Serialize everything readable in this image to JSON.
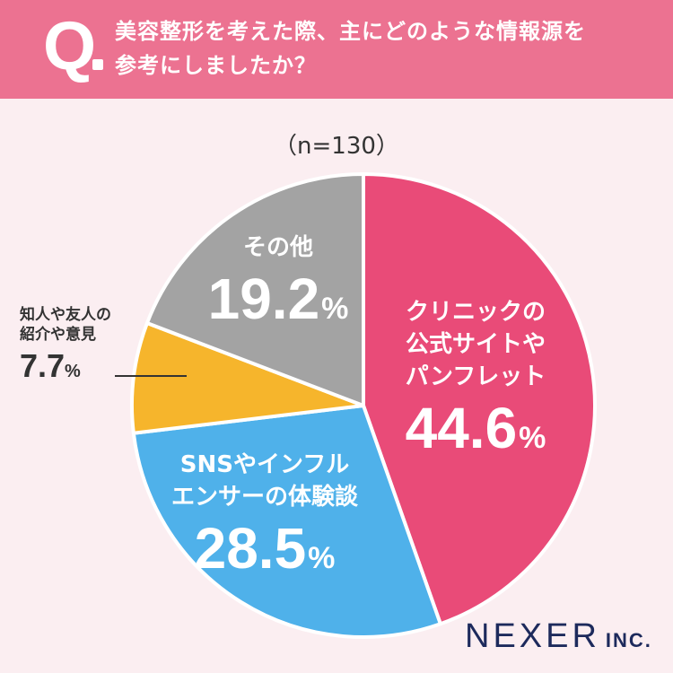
{
  "header": {
    "q_mark": "Q",
    "question_line1": "美容整形を考えた際、主にどのような情報源を",
    "question_line2": "参考にしましたか？"
  },
  "sample": "（n=130）",
  "colors": {
    "header_bg": "#ec7291",
    "background": "#fbeef1",
    "clinic": "#e94b78",
    "sns": "#4fb1ea",
    "friends": "#f6b52c",
    "other": "#a3a3a3"
  },
  "chart_data": {
    "type": "pie",
    "title": "美容整形を考えた際、主にどのような情報源を参考にしましたか？",
    "n": 130,
    "slices": [
      {
        "label_lines": [
          "クリニックの",
          "公式サイトや",
          "パンフレット"
        ],
        "value": 44.6,
        "value_text": "44.6",
        "unit": "%",
        "color": "#e94b78"
      },
      {
        "label_lines": [
          "SNSやインフル",
          "エンサーの体験談"
        ],
        "value": 28.5,
        "value_text": "28.5",
        "unit": "%",
        "color": "#4fb1ea"
      },
      {
        "label_lines": [
          "知人や友人の",
          "紹介や意見"
        ],
        "value": 7.7,
        "value_text": "7.7",
        "unit": "%",
        "color": "#f6b52c"
      },
      {
        "label_lines": [
          "その他"
        ],
        "value": 19.2,
        "value_text": "19.2",
        "unit": "%",
        "color": "#a3a3a3"
      }
    ]
  },
  "logo": {
    "main": "NEXER",
    "suffix": "INC."
  }
}
